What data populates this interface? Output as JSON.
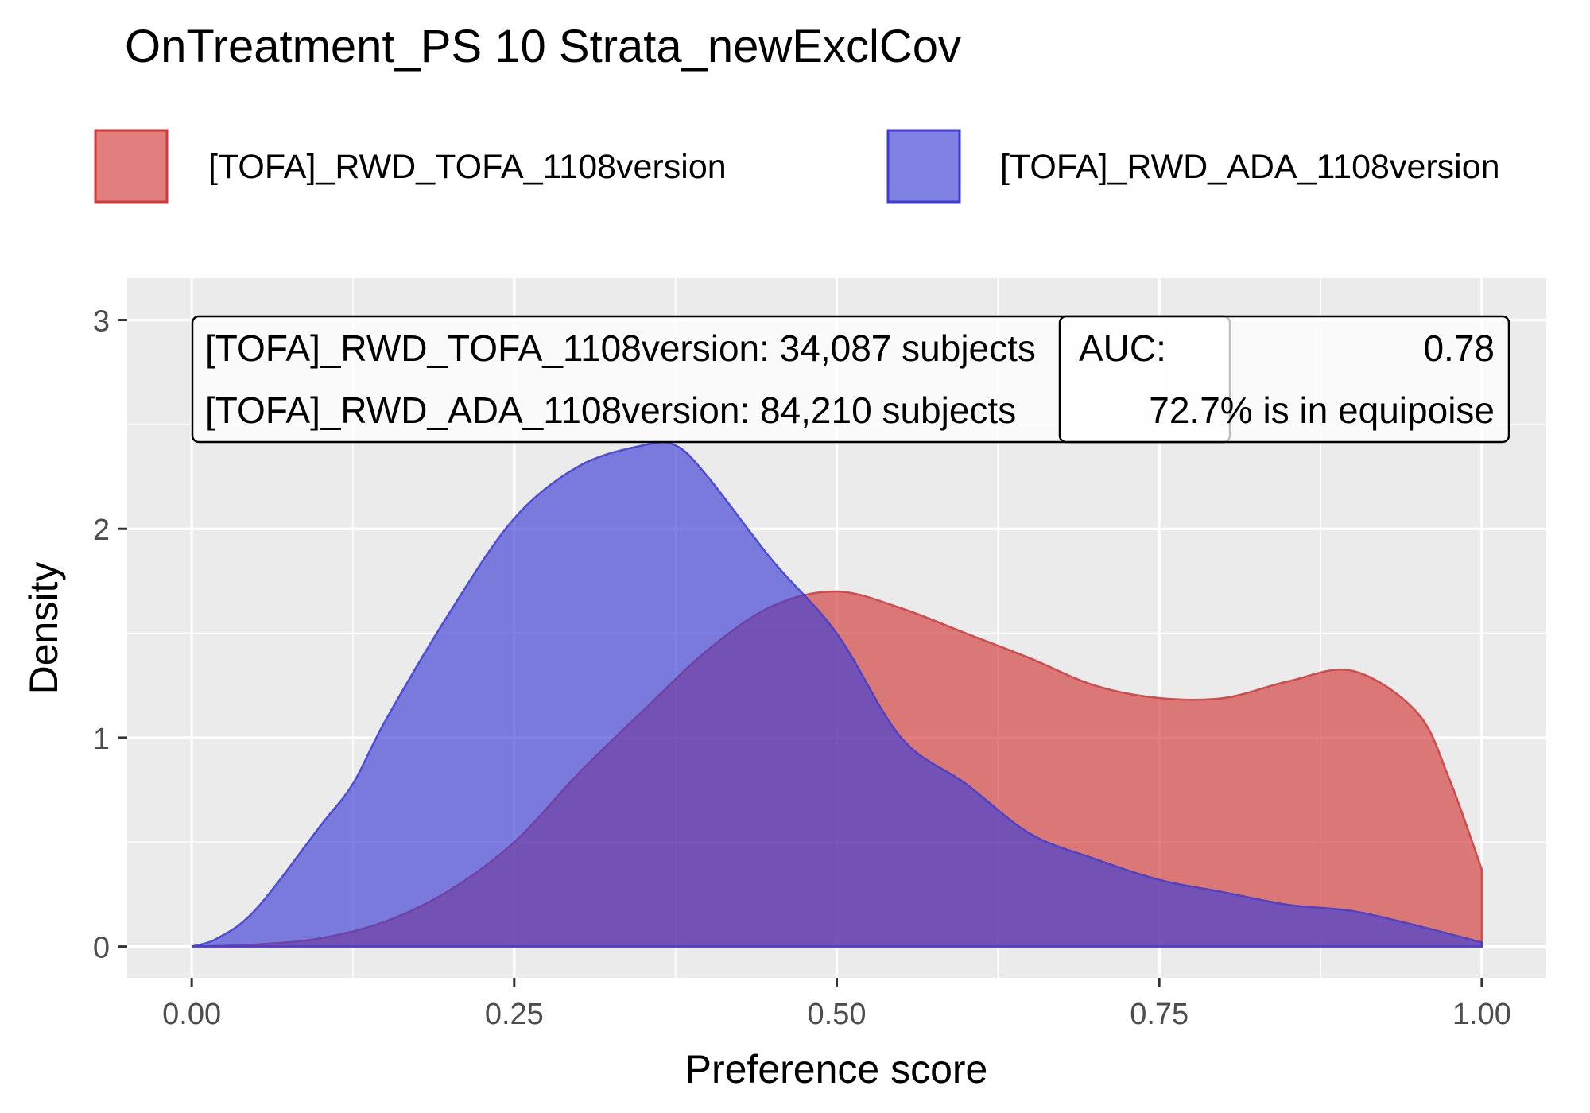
{
  "chart_data": {
    "type": "area",
    "title": "OnTreatment_PS 10 Strata_newExclCov",
    "xlabel": "Preference score",
    "ylabel": "Density",
    "xlim": [
      -0.05,
      1.05
    ],
    "ylim": [
      -0.15,
      3.2
    ],
    "x_ticks": [
      {
        "value": 0,
        "label": "0.00"
      },
      {
        "value": 0.25,
        "label": "0.25"
      },
      {
        "value": 0.5,
        "label": "0.50"
      },
      {
        "value": 0.75,
        "label": "0.75"
      },
      {
        "value": 1,
        "label": "1.00"
      }
    ],
    "y_ticks": [
      {
        "value": 0,
        "label": "0"
      },
      {
        "value": 1,
        "label": "1"
      },
      {
        "value": 2,
        "label": "2"
      },
      {
        "value": 3,
        "label": "3"
      }
    ],
    "grid": true,
    "legend_position": "top",
    "series": [
      {
        "name": "[TOFA]_RWD_TOFA_1108version",
        "color": "#D13A3A",
        "x": [
          0,
          0.05,
          0.1,
          0.15,
          0.2,
          0.25,
          0.3,
          0.35,
          0.4,
          0.45,
          0.5,
          0.55,
          0.6,
          0.65,
          0.7,
          0.75,
          0.8,
          0.85,
          0.9,
          0.95,
          0.975,
          1.0
        ],
        "values": [
          0,
          0.01,
          0.04,
          0.12,
          0.27,
          0.5,
          0.83,
          1.13,
          1.42,
          1.63,
          1.7,
          1.62,
          1.5,
          1.38,
          1.25,
          1.19,
          1.19,
          1.27,
          1.32,
          1.12,
          0.8,
          0.37
        ]
      },
      {
        "name": "[TOFA]_RWD_ADA_1108version",
        "color": "#3D3DD6",
        "x": [
          0,
          0.02,
          0.05,
          0.1,
          0.125,
          0.15,
          0.2,
          0.25,
          0.3,
          0.35,
          0.375,
          0.4,
          0.45,
          0.5,
          0.55,
          0.6,
          0.65,
          0.7,
          0.75,
          0.8,
          0.85,
          0.9,
          0.95,
          1.0
        ],
        "values": [
          0,
          0.04,
          0.18,
          0.58,
          0.78,
          1.08,
          1.6,
          2.05,
          2.3,
          2.4,
          2.4,
          2.25,
          1.85,
          1.5,
          1.0,
          0.78,
          0.54,
          0.42,
          0.32,
          0.26,
          0.2,
          0.17,
          0.1,
          0.02
        ]
      }
    ],
    "annotations": {
      "counts_lines": [
        "[TOFA]_RWD_TOFA_1108version: 34,087 subjects",
        "[TOFA]_RWD_ADA_1108version: 84,210 subjects"
      ],
      "auc_label": "AUC:",
      "auc_value": "0.78",
      "equipoise": "72.7% is in equipoise"
    }
  }
}
